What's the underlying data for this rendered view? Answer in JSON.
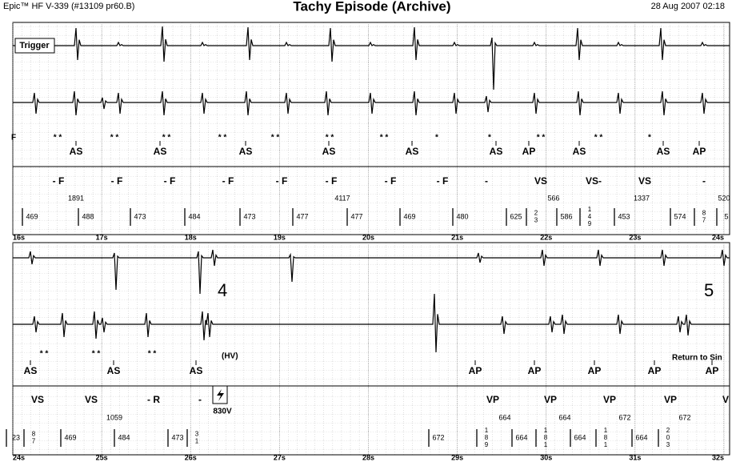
{
  "header": {
    "device": "Epic™ HF V-339 (#13109 pr60.B)",
    "title": "Tachy Episode (Archive)",
    "datetime": "28 Aug 2007 02:18"
  },
  "panels": [
    {
      "trigger": "Trigger",
      "edge_label": "F",
      "big_labels": [],
      "notes": [],
      "asterisks": [
        "* *",
        "* *",
        "* *",
        "* *",
        "* *",
        "* *",
        "* *",
        "*",
        "*",
        "* *",
        "* *",
        "*"
      ],
      "atrial_markers": [
        "AS",
        "AS",
        "AS",
        "AS",
        "AS",
        "AS",
        "AP",
        "AS",
        "AS",
        "AP"
      ],
      "ventricular_markers": [
        "- F",
        "- F",
        "- F",
        "- F",
        "- F",
        "- F",
        "- F",
        "- F",
        "-",
        "VS",
        "VS-",
        "VS",
        "-"
      ],
      "v_intervals": [
        "1891",
        "4117",
        "566",
        "1337",
        "520"
      ],
      "a_intervals": [
        [
          "469"
        ],
        [
          "488"
        ],
        [
          "473"
        ],
        [
          "484"
        ],
        [
          "473"
        ],
        [
          "477"
        ],
        [
          "477"
        ],
        [
          "469"
        ],
        [
          "480"
        ],
        [
          "625"
        ],
        [
          "2",
          "3"
        ],
        [
          "586"
        ],
        [
          "1",
          "4",
          "9"
        ],
        [
          "453"
        ],
        [
          "574"
        ],
        [
          "8",
          "7"
        ],
        [
          "5"
        ]
      ],
      "time_labels": [
        "16s",
        "17s",
        "18s",
        "19s",
        "20s",
        "21s",
        "22s",
        "23s",
        "24s"
      ]
    },
    {
      "big_labels": [
        "4",
        "5"
      ],
      "notes": [
        "(HV)",
        "Return to Sin",
        "830V"
      ],
      "asterisks": [
        "* *",
        "* *",
        "* *"
      ],
      "atrial_markers": [
        "AS",
        "AS",
        "AS",
        "AP",
        "AP",
        "AP",
        "AP",
        "AP"
      ],
      "ventricular_markers": [
        "VS",
        "VS",
        "- R",
        "-",
        "VP",
        "VP",
        "VP",
        "VP",
        "V"
      ],
      "v_intervals": [
        "1059",
        "664",
        "664",
        "672",
        "672"
      ],
      "a_intervals": [
        [
          "23"
        ],
        [
          "8",
          "7"
        ],
        [
          "469"
        ],
        [
          "484"
        ],
        [
          "473"
        ],
        [
          "3",
          "1"
        ],
        [
          "672"
        ],
        [
          "1",
          "8",
          "9"
        ],
        [
          "664"
        ],
        [
          "1",
          "8",
          "1"
        ],
        [
          "664"
        ],
        [
          "1",
          "8",
          "1"
        ],
        [
          "664"
        ],
        [
          "2",
          "0",
          "3"
        ]
      ],
      "time_labels": [
        "24s",
        "25s",
        "26s",
        "27s",
        "28s",
        "29s",
        "30s",
        "31s",
        "32s"
      ]
    }
  ]
}
